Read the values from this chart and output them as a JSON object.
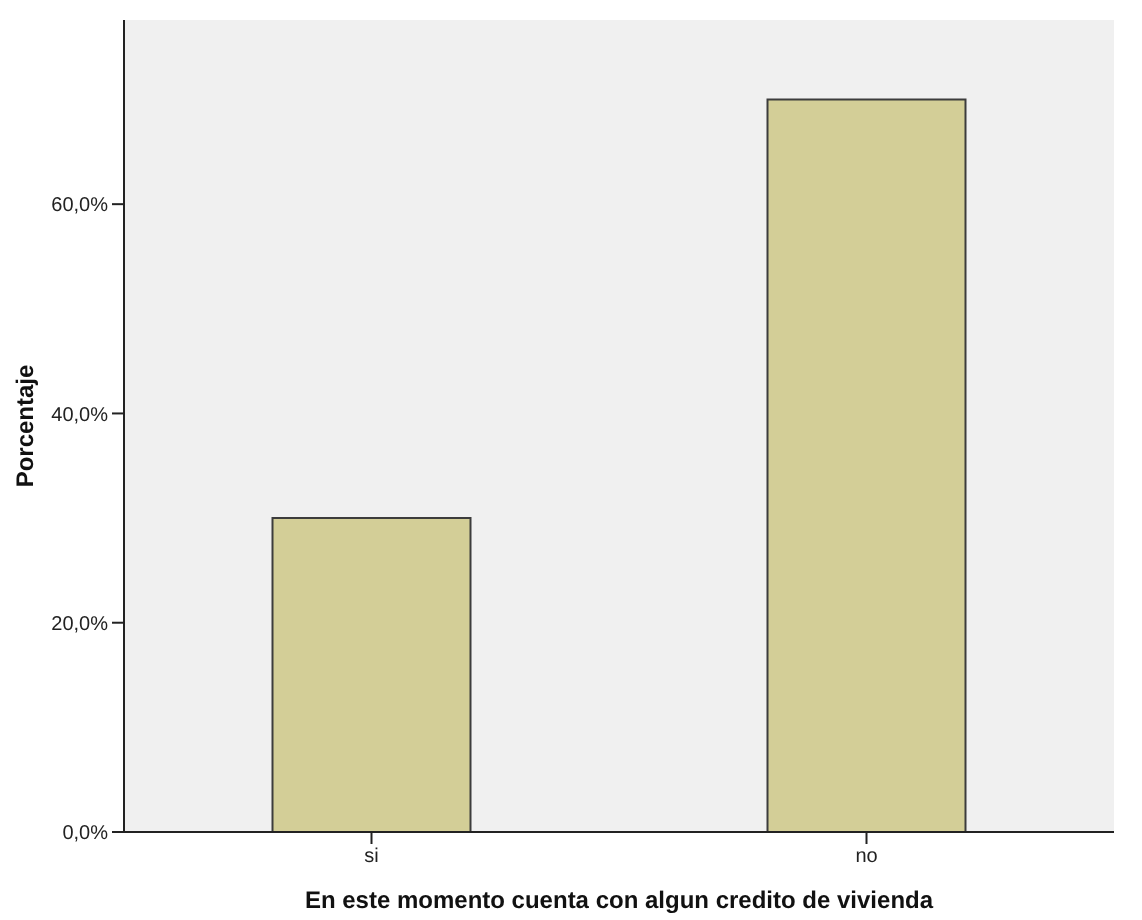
{
  "chart_data": {
    "type": "bar",
    "xlabel": "En este momento cuenta con algun credito de vivienda",
    "ylabel": "Porcentaje",
    "categories": [
      "si",
      "no"
    ],
    "values": [
      30,
      70
    ],
    "color": "#d3ce97",
    "ylim": [
      0,
      77.6
    ],
    "yticks": [
      {
        "value": 0,
        "label": "0,0%"
      },
      {
        "value": 20,
        "label": "20,0%"
      },
      {
        "value": 40,
        "label": "40,0%"
      },
      {
        "value": 60,
        "label": "60,0%"
      }
    ]
  }
}
